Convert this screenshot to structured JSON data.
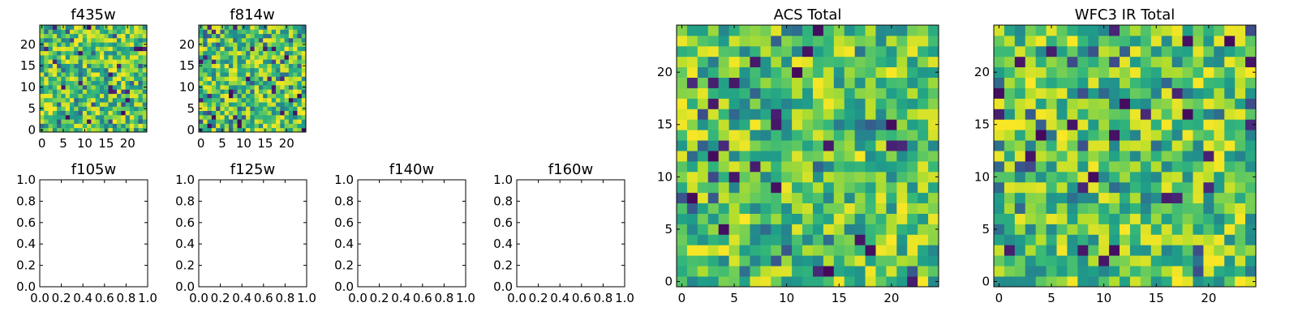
{
  "chart_data": [
    {
      "type": "heatmap",
      "title": "f435w",
      "xlim": [
        -0.5,
        24.5
      ],
      "ylim": [
        -0.5,
        24.5
      ],
      "xticks": [
        0,
        5,
        10,
        15,
        20
      ],
      "yticks": [
        0,
        5,
        10,
        15,
        20
      ],
      "xticklabels": [
        "0",
        "5",
        "10",
        "15",
        "20"
      ],
      "yticklabels": [
        "0",
        "5",
        "10",
        "15",
        "20"
      ],
      "grid_size": [
        25,
        25
      ],
      "colormap": "viridis",
      "seed": 11,
      "has_image": true
    },
    {
      "type": "heatmap",
      "title": "f814w",
      "xlim": [
        -0.5,
        24.5
      ],
      "ylim": [
        -0.5,
        24.5
      ],
      "xticks": [
        0,
        5,
        10,
        15,
        20
      ],
      "yticks": [
        0,
        5,
        10,
        15,
        20
      ],
      "xticklabels": [
        "0",
        "5",
        "10",
        "15",
        "20"
      ],
      "yticklabels": [
        "0",
        "5",
        "10",
        "15",
        "20"
      ],
      "grid_size": [
        25,
        25
      ],
      "colormap": "viridis",
      "seed": 23,
      "has_image": true
    },
    {
      "type": "heatmap",
      "title": "f105w",
      "xlim": [
        0,
        1
      ],
      "ylim": [
        0,
        1
      ],
      "xticks": [
        0,
        0.2,
        0.4,
        0.6,
        0.8,
        1.0
      ],
      "yticks": [
        0,
        0.2,
        0.4,
        0.6,
        0.8,
        1.0
      ],
      "xticklabels": [
        "0.0",
        "0.2",
        "0.4",
        "0.6",
        "0.8",
        "1.0"
      ],
      "yticklabels": [
        "0.0",
        "0.2",
        "0.4",
        "0.6",
        "0.8",
        "1.0"
      ],
      "has_image": false
    },
    {
      "type": "heatmap",
      "title": "f125w",
      "xlim": [
        0,
        1
      ],
      "ylim": [
        0,
        1
      ],
      "xticks": [
        0,
        0.2,
        0.4,
        0.6,
        0.8,
        1.0
      ],
      "yticks": [
        0,
        0.2,
        0.4,
        0.6,
        0.8,
        1.0
      ],
      "xticklabels": [
        "0.0",
        "0.2",
        "0.4",
        "0.6",
        "0.8",
        "1.0"
      ],
      "yticklabels": [
        "0.0",
        "0.2",
        "0.4",
        "0.6",
        "0.8",
        "1.0"
      ],
      "has_image": false
    },
    {
      "type": "heatmap",
      "title": "f140w",
      "xlim": [
        0,
        1
      ],
      "ylim": [
        0,
        1
      ],
      "xticks": [
        0,
        0.2,
        0.4,
        0.6,
        0.8,
        1.0
      ],
      "yticks": [
        0,
        0.2,
        0.4,
        0.6,
        0.8,
        1.0
      ],
      "xticklabels": [
        "0.0",
        "0.2",
        "0.4",
        "0.6",
        "0.8",
        "1.0"
      ],
      "yticklabels": [
        "0.0",
        "0.2",
        "0.4",
        "0.6",
        "0.8",
        "1.0"
      ],
      "has_image": false
    },
    {
      "type": "heatmap",
      "title": "f160w",
      "xlim": [
        0,
        1
      ],
      "ylim": [
        0,
        1
      ],
      "xticks": [
        0,
        0.2,
        0.4,
        0.6,
        0.8,
        1.0
      ],
      "yticks": [
        0,
        0.2,
        0.4,
        0.6,
        0.8,
        1.0
      ],
      "xticklabels": [
        "0.0",
        "0.2",
        "0.4",
        "0.6",
        "0.8",
        "1.0"
      ],
      "yticklabels": [
        "0.0",
        "0.2",
        "0.4",
        "0.6",
        "0.8",
        "1.0"
      ],
      "has_image": false
    },
    {
      "type": "heatmap",
      "title": "ACS Total",
      "xlim": [
        -0.5,
        24.5
      ],
      "ylim": [
        -0.5,
        24.5
      ],
      "xticks": [
        0,
        5,
        10,
        15,
        20
      ],
      "yticks": [
        0,
        5,
        10,
        15,
        20
      ],
      "xticklabels": [
        "0",
        "5",
        "10",
        "15",
        "20"
      ],
      "yticklabels": [
        "0",
        "5",
        "10",
        "15",
        "20"
      ],
      "grid_size": [
        25,
        25
      ],
      "colormap": "viridis",
      "seed": 37,
      "has_image": true
    },
    {
      "type": "heatmap",
      "title": "WFC3 IR Total",
      "xlim": [
        -0.5,
        24.5
      ],
      "ylim": [
        -0.5,
        24.5
      ],
      "xticks": [
        0,
        5,
        10,
        15,
        20
      ],
      "yticks": [
        0,
        5,
        10,
        15,
        20
      ],
      "xticklabels": [
        "0",
        "5",
        "10",
        "15",
        "20"
      ],
      "yticklabels": [
        "0",
        "5",
        "10",
        "15",
        "20"
      ],
      "grid_size": [
        25,
        25
      ],
      "colormap": "viridis",
      "seed": 53,
      "has_image": true
    }
  ]
}
